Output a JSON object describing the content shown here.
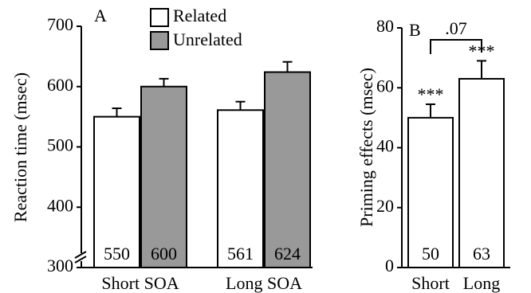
{
  "chart_data": [
    {
      "type": "bar",
      "panel": "A",
      "y_label": "Reaction time (msec)",
      "categories": [
        "Short SOA",
        "Long SOA"
      ],
      "series": [
        {
          "name": "Related",
          "color": "#ffffff",
          "values": [
            550,
            561
          ],
          "errors": [
            14,
            14
          ]
        },
        {
          "name": "Unrelated",
          "color": "#999999",
          "values": [
            600,
            624
          ],
          "errors": [
            13,
            17
          ]
        }
      ],
      "ylim": [
        300,
        700
      ],
      "yticks": [
        300,
        400,
        500,
        600,
        700
      ]
    },
    {
      "type": "bar",
      "panel": "B",
      "y_label": "Priming effects (msec)",
      "categories": [
        "Short",
        "Long"
      ],
      "values": [
        50,
        63
      ],
      "errors": [
        4.5,
        6
      ],
      "color": "#ffffff",
      "significance": [
        "***",
        "***"
      ],
      "comparison_label": ".07",
      "ylim": [
        0,
        80
      ],
      "yticks": [
        0,
        20,
        40,
        60,
        80
      ]
    }
  ]
}
